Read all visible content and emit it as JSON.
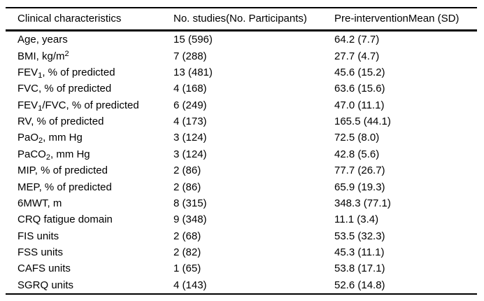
{
  "colors": {
    "background": "#ffffff",
    "text": "#000000",
    "rule": "#000000"
  },
  "table": {
    "columns": [
      {
        "label": "Clinical characteristics"
      },
      {
        "label": "No. studies(No. Participants)"
      },
      {
        "label": "Pre-interventionMean (SD)"
      }
    ],
    "rows": [
      {
        "characteristic": [
          {
            "t": "Age, years"
          }
        ],
        "studies": "15 (596)",
        "mean_sd": "64.2 (7.7)"
      },
      {
        "characteristic": [
          {
            "t": "BMI, kg/m"
          },
          {
            "sup": "2"
          }
        ],
        "studies": "7 (288)",
        "mean_sd": "27.7 (4.7)"
      },
      {
        "characteristic": [
          {
            "t": "FEV"
          },
          {
            "sub": "1"
          },
          {
            "t": ", % of predicted"
          }
        ],
        "studies": "13 (481)",
        "mean_sd": "45.6 (15.2)"
      },
      {
        "characteristic": [
          {
            "t": "FVC, % of predicted"
          }
        ],
        "studies": "4 (168)",
        "mean_sd": "63.6 (15.6)"
      },
      {
        "characteristic": [
          {
            "t": "FEV"
          },
          {
            "sub": "1"
          },
          {
            "t": "/FVC, % of predicted"
          }
        ],
        "studies": "6 (249)",
        "mean_sd": "47.0 (11.1)"
      },
      {
        "characteristic": [
          {
            "t": "RV, % of predicted"
          }
        ],
        "studies": "4 (173)",
        "mean_sd": "165.5 (44.1)"
      },
      {
        "characteristic": [
          {
            "t": "PaO"
          },
          {
            "sub": "2"
          },
          {
            "t": ", mm Hg"
          }
        ],
        "studies": "3 (124)",
        "mean_sd": "72.5 (8.0)"
      },
      {
        "characteristic": [
          {
            "t": "PaCO"
          },
          {
            "sub": "2"
          },
          {
            "t": ", mm Hg"
          }
        ],
        "studies": "3 (124)",
        "mean_sd": "42.8 (5.6)"
      },
      {
        "characteristic": [
          {
            "t": "MIP, % of predicted"
          }
        ],
        "studies": "2 (86)",
        "mean_sd": "77.7 (26.7)"
      },
      {
        "characteristic": [
          {
            "t": "MEP, % of predicted"
          }
        ],
        "studies": "2 (86)",
        "mean_sd": "65.9 (19.3)"
      },
      {
        "characteristic": [
          {
            "t": "6MWT, m"
          }
        ],
        "studies": "8 (315)",
        "mean_sd": "348.3 (77.1)"
      },
      {
        "characteristic": [
          {
            "t": "CRQ fatigue domain"
          }
        ],
        "studies": "9 (348)",
        "mean_sd": "11.1 (3.4)"
      },
      {
        "characteristic": [
          {
            "t": "FIS units"
          }
        ],
        "studies": "2 (68)",
        "mean_sd": "53.5 (32.3)"
      },
      {
        "characteristic": [
          {
            "t": "FSS units"
          }
        ],
        "studies": "2 (82)",
        "mean_sd": "45.3 (11.1)"
      },
      {
        "characteristic": [
          {
            "t": "CAFS units"
          }
        ],
        "studies": "1 (65)",
        "mean_sd": "53.8 (17.1)"
      },
      {
        "characteristic": [
          {
            "t": "SGRQ units"
          }
        ],
        "studies": "4 (143)",
        "mean_sd": "52.6 (14.8)"
      }
    ]
  }
}
